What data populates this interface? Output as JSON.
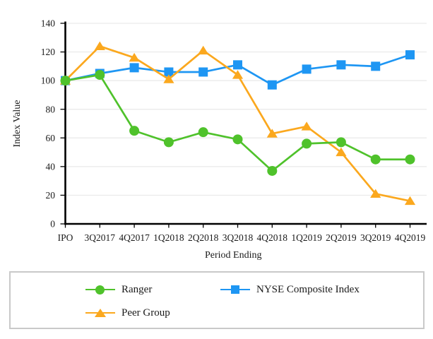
{
  "chart_data": {
    "type": "line",
    "title": "",
    "xlabel": "Period Ending",
    "ylabel": "Index Value",
    "categories": [
      "IPO",
      "3Q2017",
      "4Q2017",
      "1Q2018",
      "2Q2018",
      "3Q2018",
      "4Q2018",
      "1Q2019",
      "2Q2019",
      "3Q2019",
      "4Q2019"
    ],
    "ylim": [
      0,
      140
    ],
    "ytick_step": 20,
    "grid": "horizontal-light",
    "gridline_color": "#e9e9e9",
    "axis_color": "#000000",
    "legend_position": "boxed-bottom",
    "series": [
      {
        "name": "Ranger",
        "marker": "circle",
        "color": "#4fc22b",
        "z": 3,
        "values": [
          100,
          104,
          65,
          57,
          64,
          59,
          37,
          56,
          57,
          45,
          45
        ]
      },
      {
        "name": "NYSE Composite Index",
        "marker": "square",
        "color": "#1e96f3",
        "z": 1,
        "values": [
          100,
          105,
          109,
          106,
          106,
          111,
          97,
          108,
          111,
          110,
          118
        ]
      },
      {
        "name": "Peer Group",
        "marker": "triangle",
        "color": "#fba81e",
        "z": 2,
        "values": [
          100,
          124,
          116,
          101,
          121,
          104,
          63,
          68,
          50,
          21,
          16
        ]
      }
    ]
  },
  "legend": {
    "items": [
      {
        "label": "Ranger"
      },
      {
        "label": "NYSE Composite Index"
      },
      {
        "label": "Peer Group"
      }
    ]
  }
}
